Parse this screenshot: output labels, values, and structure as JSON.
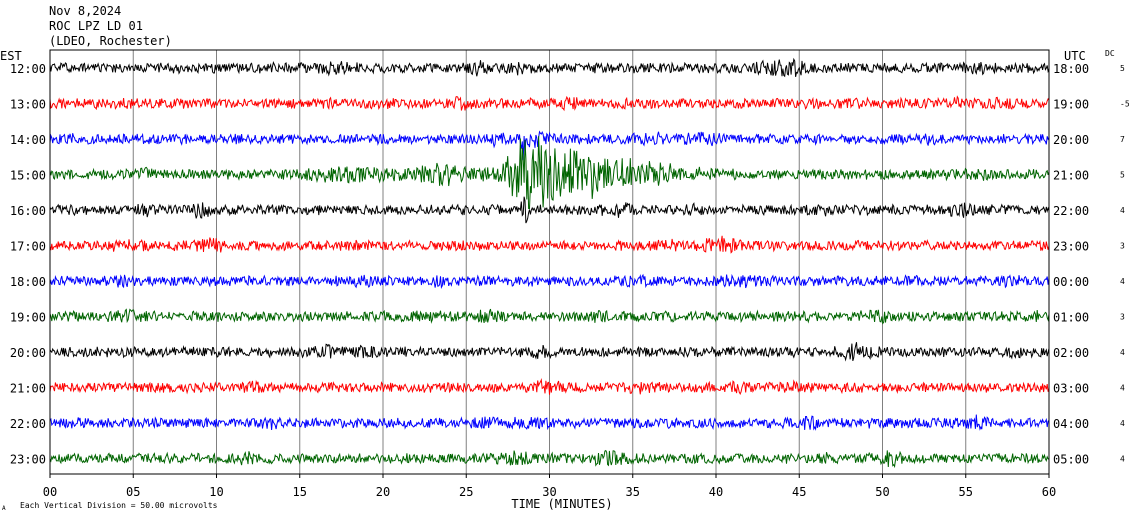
{
  "header": {
    "date": "Nov 8,2024",
    "station": "ROC LPZ LD 01",
    "network": "(LDEO, Rochester)"
  },
  "labels": {
    "left_tz": "EST",
    "right_tz": "UTC",
    "dc": "DC",
    "footnote": "Each Vertical Division =   50.00 microvolts",
    "corner_mark": "A"
  },
  "colors": {
    "black": "#000000",
    "red": "#ff0000",
    "blue": "#0000ff",
    "green": "#006400",
    "grid": "#808080"
  },
  "chart_data": {
    "type": "line",
    "xlabel": "TIME (MINUTES)",
    "xlim": [
      0,
      60
    ],
    "x_ticks": [
      "00",
      "05",
      "10",
      "15",
      "20",
      "25",
      "30",
      "35",
      "40",
      "45",
      "50",
      "55",
      "60"
    ],
    "rows": [
      {
        "est": "12:00",
        "utc": "18:00",
        "dc": "5",
        "color": "black"
      },
      {
        "est": "13:00",
        "utc": "19:00",
        "dc": "-5",
        "color": "red"
      },
      {
        "est": "14:00",
        "utc": "20:00",
        "dc": "7",
        "color": "blue"
      },
      {
        "est": "15:00",
        "utc": "21:00",
        "dc": "5",
        "color": "green"
      },
      {
        "est": "16:00",
        "utc": "22:00",
        "dc": "4",
        "color": "black"
      },
      {
        "est": "17:00",
        "utc": "23:00",
        "dc": "3",
        "color": "red"
      },
      {
        "est": "18:00",
        "utc": "00:00",
        "dc": "4",
        "color": "blue"
      },
      {
        "est": "19:00",
        "utc": "01:00",
        "dc": "3",
        "color": "green"
      },
      {
        "est": "20:00",
        "utc": "02:00",
        "dc": "4",
        "color": "black"
      },
      {
        "est": "21:00",
        "utc": "03:00",
        "dc": "4",
        "color": "red"
      },
      {
        "est": "22:00",
        "utc": "04:00",
        "dc": "4",
        "color": "blue"
      },
      {
        "est": "23:00",
        "utc": "05:00",
        "dc": "4",
        "color": "green"
      }
    ],
    "event": {
      "row": 3,
      "onset_minute": 27.0,
      "peak_minute": 28.5,
      "coda_end_minute": 42.0
    }
  }
}
